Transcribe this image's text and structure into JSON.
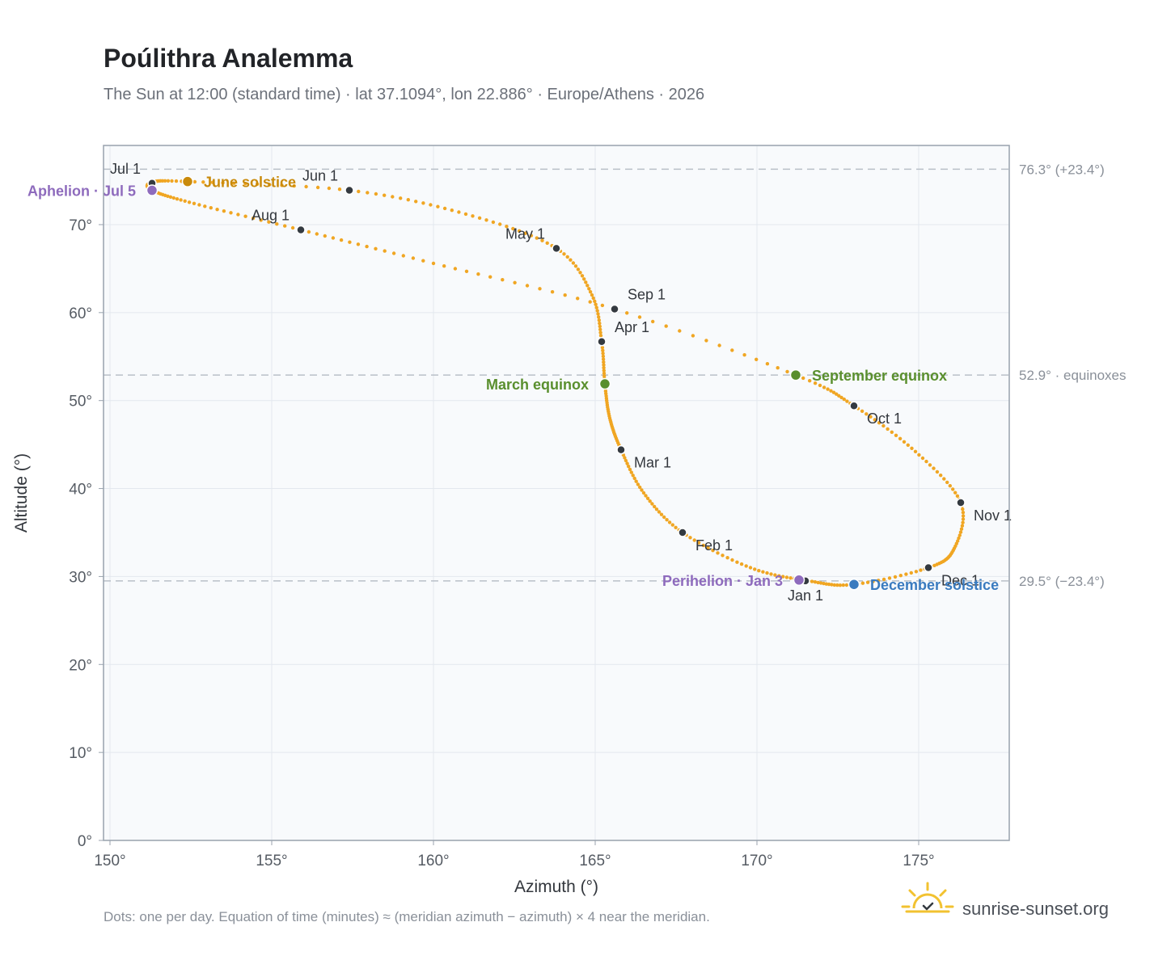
{
  "header": {
    "title": "Poúlithra Analemma",
    "subtitle": "The Sun at 12:00 (standard time) · lat 37.1094°, lon 22.886° · Europe/Athens · 2026"
  },
  "footer": {
    "note": "Dots: one per day. Equation of time (minutes) ≈ (meridian azimuth − azimuth) × 4 near the meridian.",
    "brand": "sunrise-sunset.org"
  },
  "colors": {
    "path": "#f0a623",
    "month_marker": "#343a40",
    "june_solstice": "#c98a0b",
    "equinox": "#5a8f2e",
    "december_solstice": "#3a7bbf",
    "apsis": "#8e6bbd",
    "ref_line": "#b9c0c8",
    "plot_bg": "#f8fafc",
    "grid": "#e3e8ee",
    "frame": "#98a2ad"
  },
  "chart_data": {
    "type": "scatter",
    "title": "Poúlithra Analemma",
    "subtitle": "The Sun at 12:00 (standard time) · lat 37.1094°, lon 22.886° · Europe/Athens · 2026",
    "xlabel": "Azimuth (°)",
    "ylabel": "Altitude (°)",
    "xlim": [
      149.8,
      177.8
    ],
    "ylim": [
      0,
      79
    ],
    "xticks": [
      {
        "value": 150,
        "label": "150°"
      },
      {
        "value": 155,
        "label": "155°"
      },
      {
        "value": 160,
        "label": "160°"
      },
      {
        "value": 165,
        "label": "165°"
      },
      {
        "value": 170,
        "label": "170°"
      },
      {
        "value": 175,
        "label": "175°"
      }
    ],
    "yticks": [
      {
        "value": 0,
        "label": "0°"
      },
      {
        "value": 10,
        "label": "10°"
      },
      {
        "value": 20,
        "label": "20°"
      },
      {
        "value": 30,
        "label": "30°"
      },
      {
        "value": 40,
        "label": "40°"
      },
      {
        "value": 50,
        "label": "50°"
      },
      {
        "value": 60,
        "label": "60°"
      },
      {
        "value": 70,
        "label": "70°"
      }
    ],
    "grid": true,
    "reference_lines": [
      {
        "altitude": 76.3,
        "label": "76.3° (+23.4°)"
      },
      {
        "altitude": 52.9,
        "label": "52.9° · equinoxes"
      },
      {
        "altitude": 29.5,
        "label": "29.5° (−23.4°)"
      }
    ],
    "path_anchors": [
      {
        "date": "Jan 1",
        "azimuth": 171.6,
        "altitude": 29.5
      },
      {
        "date": "Jan 15",
        "azimuth": 169.8,
        "altitude": 31.0
      },
      {
        "date": "Feb 1",
        "azimuth": 167.7,
        "altitude": 35.0
      },
      {
        "date": "Feb 15",
        "azimuth": 166.5,
        "altitude": 39.5
      },
      {
        "date": "Mar 1",
        "azimuth": 165.8,
        "altitude": 44.4
      },
      {
        "date": "Mar 10",
        "azimuth": 165.45,
        "altitude": 48.0
      },
      {
        "date": "Mar 20",
        "azimuth": 165.3,
        "altitude": 51.9
      },
      {
        "date": "Apr 1",
        "azimuth": 165.2,
        "altitude": 56.7
      },
      {
        "date": "Apr 15",
        "azimuth": 164.9,
        "altitude": 62.0
      },
      {
        "date": "May 1",
        "azimuth": 163.8,
        "altitude": 67.3
      },
      {
        "date": "May 15",
        "azimuth": 161.0,
        "altitude": 71.2
      },
      {
        "date": "Jun 1",
        "azimuth": 157.4,
        "altitude": 73.9
      },
      {
        "date": "Jun 21",
        "azimuth": 152.4,
        "altitude": 74.9
      },
      {
        "date": "Jul 1",
        "azimuth": 151.3,
        "altitude": 74.8
      },
      {
        "date": "Jul 5",
        "azimuth": 151.3,
        "altitude": 73.9
      },
      {
        "date": "Jul 15",
        "azimuth": 152.6,
        "altitude": 72.4
      },
      {
        "date": "Aug 1",
        "azimuth": 155.9,
        "altitude": 69.4
      },
      {
        "date": "Aug 15",
        "azimuth": 160.0,
        "altitude": 65.6
      },
      {
        "date": "Sep 1",
        "azimuth": 165.6,
        "altitude": 60.4
      },
      {
        "date": "Sep 23",
        "azimuth": 171.2,
        "altitude": 52.9
      },
      {
        "date": "Oct 1",
        "azimuth": 173.0,
        "altitude": 49.4
      },
      {
        "date": "Oct 15",
        "azimuth": 174.9,
        "altitude": 44.2
      },
      {
        "date": "Nov 1",
        "azimuth": 176.3,
        "altitude": 38.4
      },
      {
        "date": "Nov 15",
        "azimuth": 176.1,
        "altitude": 33.2
      },
      {
        "date": "Dec 1",
        "azimuth": 175.3,
        "altitude": 31.0
      },
      {
        "date": "Dec 21",
        "azimuth": 173.0,
        "altitude": 29.1
      },
      {
        "date": "Jan 1",
        "azimuth": 171.6,
        "altitude": 29.5
      }
    ],
    "month_markers": [
      {
        "label": "Jan 1",
        "azimuth": 171.5,
        "altitude": 29.5,
        "label_pos": "below"
      },
      {
        "label": "Feb 1",
        "azimuth": 167.7,
        "altitude": 35.0,
        "label_pos": "below-right"
      },
      {
        "label": "Mar 1",
        "azimuth": 165.8,
        "altitude": 44.4,
        "label_pos": "below-right"
      },
      {
        "label": "Apr 1",
        "azimuth": 165.2,
        "altitude": 56.7,
        "label_pos": "above-right"
      },
      {
        "label": "May 1",
        "azimuth": 163.8,
        "altitude": 67.3,
        "label_pos": "above-left"
      },
      {
        "label": "Jun 1",
        "azimuth": 157.4,
        "altitude": 73.9,
        "label_pos": "above-left"
      },
      {
        "label": "Jul 1",
        "azimuth": 151.3,
        "altitude": 74.7,
        "label_pos": "above-left"
      },
      {
        "label": "Aug 1",
        "azimuth": 155.9,
        "altitude": 69.4,
        "label_pos": "above-left"
      },
      {
        "label": "Sep 1",
        "azimuth": 165.6,
        "altitude": 60.4,
        "label_pos": "above-right"
      },
      {
        "label": "Oct 1",
        "azimuth": 173.0,
        "altitude": 49.4,
        "label_pos": "below-right"
      },
      {
        "label": "Nov 1",
        "azimuth": 176.3,
        "altitude": 38.4,
        "label_pos": "below-right"
      },
      {
        "label": "Dec 1",
        "azimuth": 175.3,
        "altitude": 31.0,
        "label_pos": "below-right"
      }
    ],
    "events": [
      {
        "label": "June solstice",
        "azimuth": 152.4,
        "altitude": 74.9,
        "color": "#c98a0b",
        "label_pos": "right"
      },
      {
        "label": "Aphelion · Jul 5",
        "azimuth": 151.3,
        "altitude": 73.9,
        "color": "#8e6bbd",
        "label_pos": "left"
      },
      {
        "label": "March equinox",
        "azimuth": 165.3,
        "altitude": 51.9,
        "color": "#5a8f2e",
        "label_pos": "left"
      },
      {
        "label": "September equinox",
        "azimuth": 171.2,
        "altitude": 52.9,
        "color": "#5a8f2e",
        "label_pos": "right"
      },
      {
        "label": "Perihelion · Jan 3",
        "azimuth": 171.3,
        "altitude": 29.6,
        "color": "#8e6bbd",
        "label_pos": "left"
      },
      {
        "label": "December solstice",
        "azimuth": 173.0,
        "altitude": 29.1,
        "color": "#3a7bbf",
        "label_pos": "right"
      }
    ]
  }
}
